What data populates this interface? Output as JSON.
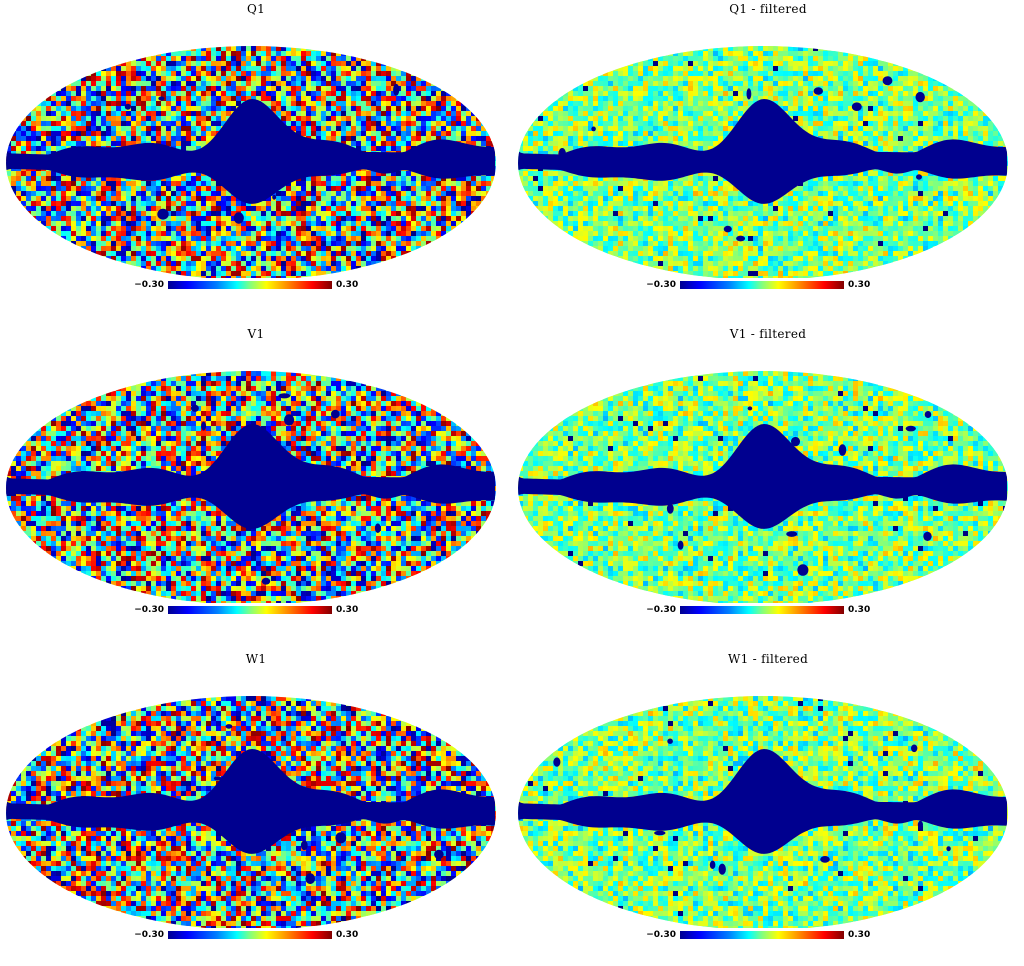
{
  "panels": [
    {
      "id": "q1",
      "title": "Q1",
      "filtered": false,
      "seed": 11,
      "colorbar": {
        "min_label": "−0.30",
        "max_label": "0.30"
      }
    },
    {
      "id": "q1f",
      "title": "Q1  -  filtered",
      "filtered": true,
      "seed": 23,
      "colorbar": {
        "min_label": "−0.30",
        "max_label": "0.30"
      }
    },
    {
      "id": "v1",
      "title": "V1",
      "filtered": false,
      "seed": 37,
      "colorbar": {
        "min_label": "−0.30",
        "max_label": "0.30"
      }
    },
    {
      "id": "v1f",
      "title": "V1  -  filtered",
      "filtered": true,
      "seed": 41,
      "colorbar": {
        "min_label": "−0.30",
        "max_label": "0.30"
      }
    },
    {
      "id": "w1",
      "title": "W1",
      "filtered": false,
      "seed": 53,
      "colorbar": {
        "min_label": "−0.30",
        "max_label": "0.30"
      }
    },
    {
      "id": "w1f",
      "title": "W1  -  filtered",
      "filtered": true,
      "seed": 67,
      "colorbar": {
        "min_label": "−0.30",
        "max_label": "0.30"
      }
    }
  ],
  "colors": {
    "mask": "#00008f",
    "colormap": [
      "#00008f",
      "#0000ff",
      "#0080ff",
      "#00ffff",
      "#80ff80",
      "#ffff00",
      "#ff8000",
      "#ff0000",
      "#800000"
    ]
  },
  "colorbar_range": [
    -0.3,
    0.3
  ]
}
